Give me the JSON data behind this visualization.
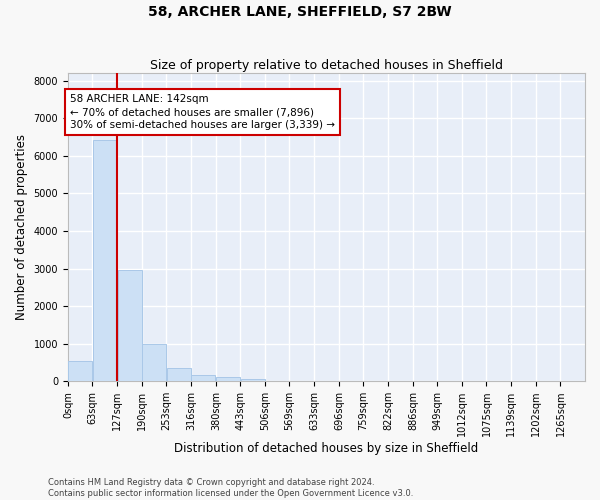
{
  "title": "58, ARCHER LANE, SHEFFIELD, S7 2BW",
  "subtitle": "Size of property relative to detached houses in Sheffield",
  "xlabel": "Distribution of detached houses by size in Sheffield",
  "ylabel": "Number of detached properties",
  "footnote1": "Contains HM Land Registry data © Crown copyright and database right 2024.",
  "footnote2": "Contains public sector information licensed under the Open Government Licence v3.0.",
  "annotation_line1": "58 ARCHER LANE: 142sqm",
  "annotation_line2": "← 70% of detached houses are smaller (7,896)",
  "annotation_line3": "30% of semi-detached houses are larger (3,339) →",
  "property_size": 142,
  "bar_color": "#cce0f5",
  "bar_edge_color": "#aac8e8",
  "vline_color": "#cc0000",
  "vline_x": 127,
  "categories": [
    "0sqm",
    "63sqm",
    "127sqm",
    "190sqm",
    "253sqm",
    "316sqm",
    "380sqm",
    "443sqm",
    "506sqm",
    "569sqm",
    "633sqm",
    "696sqm",
    "759sqm",
    "822sqm",
    "886sqm",
    "949sqm",
    "1012sqm",
    "1075sqm",
    "1139sqm",
    "1202sqm",
    "1265sqm"
  ],
  "bin_edges": [
    0,
    63,
    127,
    190,
    253,
    316,
    380,
    443,
    506,
    569,
    633,
    696,
    759,
    822,
    886,
    949,
    1012,
    1075,
    1139,
    1202,
    1265
  ],
  "bar_heights": [
    530,
    6430,
    2950,
    980,
    340,
    160,
    100,
    65,
    0,
    0,
    0,
    0,
    0,
    0,
    0,
    0,
    0,
    0,
    0,
    0
  ],
  "ylim": [
    0,
    8200
  ],
  "yticks": [
    0,
    1000,
    2000,
    3000,
    4000,
    5000,
    6000,
    7000,
    8000
  ],
  "fig_bg": "#f8f8f8",
  "axes_bg": "#e8eef8",
  "grid_color": "#ffffff",
  "title_fontsize": 10,
  "subtitle_fontsize": 9,
  "axis_label_fontsize": 8.5,
  "tick_fontsize": 7,
  "annotation_fontsize": 7.5,
  "footnote_fontsize": 6
}
